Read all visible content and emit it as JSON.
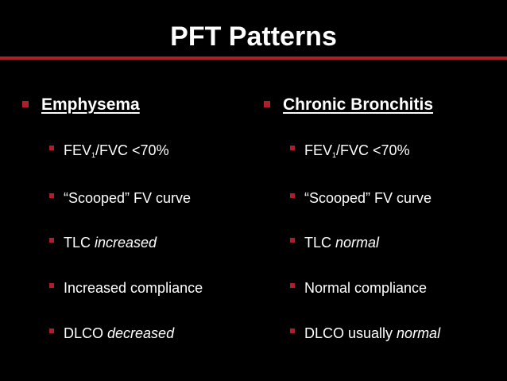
{
  "slide": {
    "title": "PFT Patterns",
    "accent_color": "#b01e2c"
  },
  "left": {
    "heading": "Emphysema",
    "items": [
      {
        "pre": "FEV",
        "sub": "1",
        "post": "/FVC  <70%",
        "em": ""
      },
      {
        "pre": "“Scooped” FV curve",
        "sub": "",
        "post": "",
        "em": ""
      },
      {
        "pre": "TLC ",
        "sub": "",
        "post": "",
        "em": "increased"
      },
      {
        "pre": "Increased compliance",
        "sub": "",
        "post": "",
        "em": ""
      },
      {
        "pre": "DLCO ",
        "sub": "",
        "post": "",
        "em": "decreased"
      }
    ]
  },
  "right": {
    "heading": "Chronic Bronchitis",
    "items": [
      {
        "pre": "FEV",
        "sub": "1",
        "post": "/FVC <70%",
        "em": ""
      },
      {
        "pre": "“Scooped” FV curve",
        "sub": "",
        "post": "",
        "em": ""
      },
      {
        "pre": "TLC ",
        "sub": "",
        "post": "",
        "em": "normal"
      },
      {
        "pre": "Normal compliance",
        "sub": "",
        "post": "",
        "em": ""
      },
      {
        "pre": "DLCO usually ",
        "sub": "",
        "post": "",
        "em": "normal"
      }
    ]
  }
}
